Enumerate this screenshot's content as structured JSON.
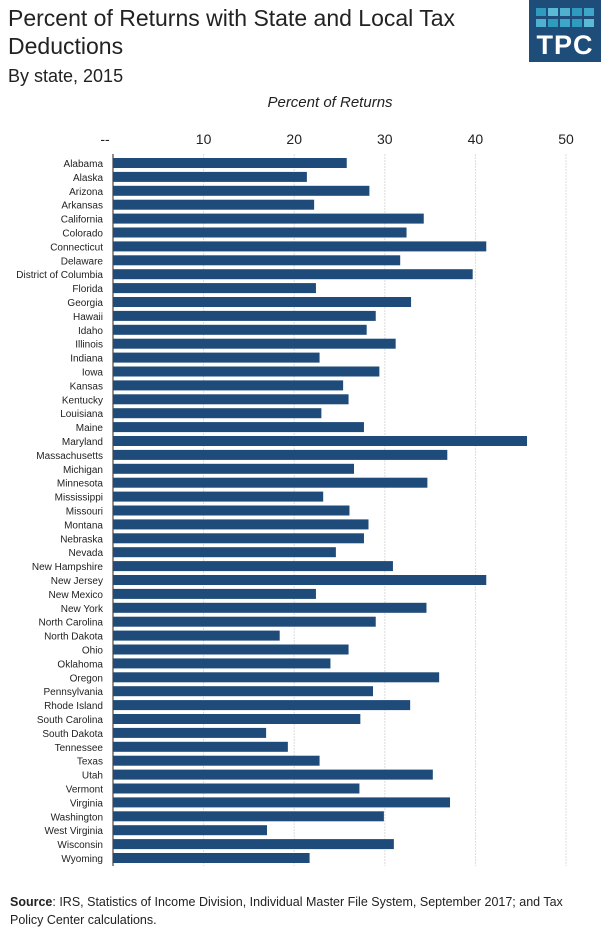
{
  "chart_data": {
    "type": "bar",
    "orientation": "horizontal",
    "title": "Percent of Returns with State and Local Tax Deductions",
    "subtitle": "By state, 2015",
    "xlabel": "Percent of Returns",
    "xlim": [
      0,
      50
    ],
    "x_ticks": [
      "--",
      "10",
      "20",
      "30",
      "40",
      "50"
    ],
    "grid": true,
    "bar_color": "#1f4b7a",
    "categories": [
      "Alabama",
      "Alaska",
      "Arizona",
      "Arkansas",
      "California",
      "Colorado",
      "Connecticut",
      "Delaware",
      "District of Columbia",
      "Florida",
      "Georgia",
      "Hawaii",
      "Idaho",
      "Illinois",
      "Indiana",
      "Iowa",
      "Kansas",
      "Kentucky",
      "Louisiana",
      "Maine",
      "Maryland",
      "Massachusetts",
      "Michigan",
      "Minnesota",
      "Mississippi",
      "Missouri",
      "Montana",
      "Nebraska",
      "Nevada",
      "New Hampshire",
      "New Jersey",
      "New Mexico",
      "New York",
      "North Carolina",
      "North Dakota",
      "Ohio",
      "Oklahoma",
      "Oregon",
      "Pennsylvania",
      "Rhode Island",
      "South Carolina",
      "South Dakota",
      "Tennessee",
      "Texas",
      "Utah",
      "Vermont",
      "Virginia",
      "Washington",
      "West Virginia",
      "Wisconsin",
      "Wyoming"
    ],
    "values": [
      25.8,
      21.4,
      28.3,
      22.2,
      34.3,
      32.4,
      41.2,
      31.7,
      39.7,
      22.4,
      32.9,
      29.0,
      28.0,
      31.2,
      22.8,
      29.4,
      25.4,
      26.0,
      23.0,
      27.7,
      45.7,
      36.9,
      26.6,
      34.7,
      23.2,
      26.1,
      28.2,
      27.7,
      24.6,
      30.9,
      41.2,
      22.4,
      34.6,
      29.0,
      18.4,
      26.0,
      24.0,
      36.0,
      28.7,
      32.8,
      27.3,
      16.9,
      19.3,
      22.8,
      35.3,
      27.2,
      37.2,
      29.9,
      17.0,
      31.0,
      21.7
    ]
  },
  "logo": {
    "text": "TPC",
    "bg": "#1f4d7a"
  },
  "footer": {
    "source_label": "Source",
    "source_text": ": IRS, Statistics of Income Division, Individual Master File System, September 2017; and Tax Policy Center calculations."
  }
}
